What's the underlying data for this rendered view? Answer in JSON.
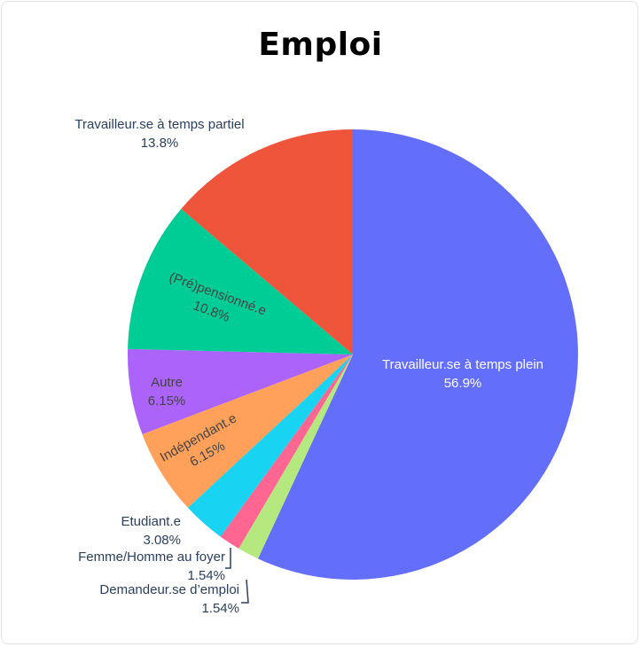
{
  "chart_data": {
    "type": "pie",
    "title": "Emploi",
    "slices": [
      {
        "label": "Travailleur.se à temps plein",
        "pct_text": "56.9%",
        "value": 56.9,
        "color": "#636efa"
      },
      {
        "label": "Demandeur.se d’emploi",
        "pct_text": "1.54%",
        "value": 1.54,
        "color": "#b6e880"
      },
      {
        "label": "Femme/Homme au foyer",
        "pct_text": "1.54%",
        "value": 1.54,
        "color": "#ff6692"
      },
      {
        "label": "Etudiant.e",
        "pct_text": "3.08%",
        "value": 3.08,
        "color": "#19d3f3"
      },
      {
        "label": "Indépendant.e",
        "pct_text": "6.15%",
        "value": 6.15,
        "color": "#ffa15a"
      },
      {
        "label": "Autre",
        "pct_text": "6.15%",
        "value": 6.15,
        "color": "#ab63fa"
      },
      {
        "label": "(Pré)pensionné.e",
        "pct_text": "10.8%",
        "value": 10.8,
        "color": "#00cc96"
      },
      {
        "label": "Travailleur.se à temps partiel",
        "pct_text": "13.8%",
        "value": 13.8,
        "color": "#ef553b"
      }
    ],
    "direction": "clockwise",
    "start": "top"
  }
}
